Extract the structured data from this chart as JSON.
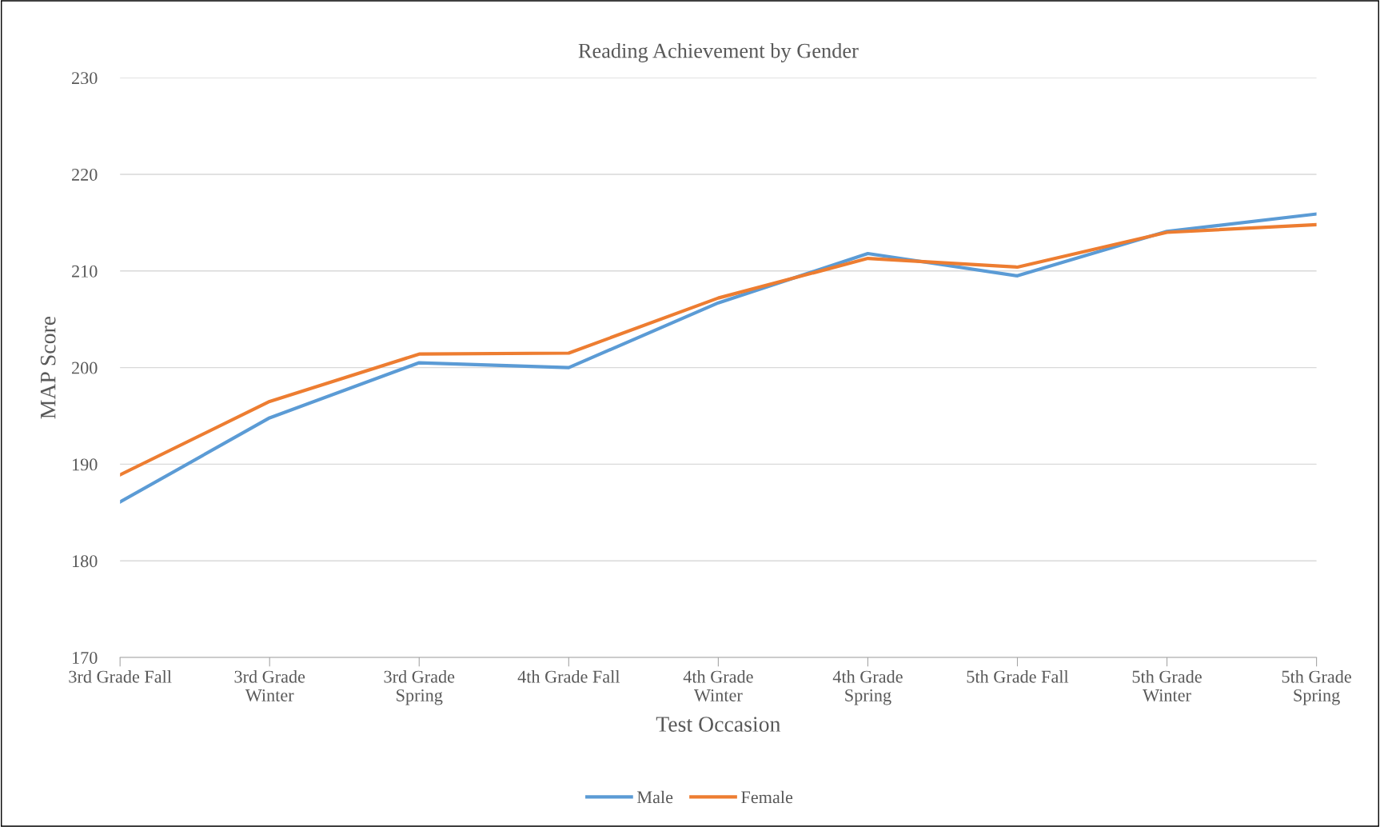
{
  "chart_data": {
    "type": "line",
    "title": "Reading Achievement by Gender",
    "xlabel": "Test Occasion",
    "ylabel": "MAP Score",
    "categories": [
      "3rd Grade Fall",
      "3rd Grade\nWinter",
      "3rd Grade\nSpring",
      "4th Grade Fall",
      "4th Grade\nWinter",
      "4th Grade\nSpring",
      "5th Grade Fall",
      "5th Grade\nWinter",
      "5th Grade\nSpring"
    ],
    "series": [
      {
        "name": "Male",
        "color": "#5b9bd5",
        "values": [
          186.1,
          194.8,
          200.5,
          200.0,
          206.7,
          211.8,
          209.5,
          214.1,
          215.9
        ]
      },
      {
        "name": "Female",
        "color": "#ed7d31",
        "values": [
          188.9,
          196.5,
          201.4,
          201.5,
          207.2,
          211.3,
          210.4,
          214.0,
          214.8
        ]
      }
    ],
    "ylim": [
      170,
      230
    ],
    "yticks": [
      170,
      180,
      190,
      200,
      210,
      220,
      230
    ],
    "grid": "y",
    "legend": "bottom",
    "marker": "none",
    "line_style": "solid"
  }
}
